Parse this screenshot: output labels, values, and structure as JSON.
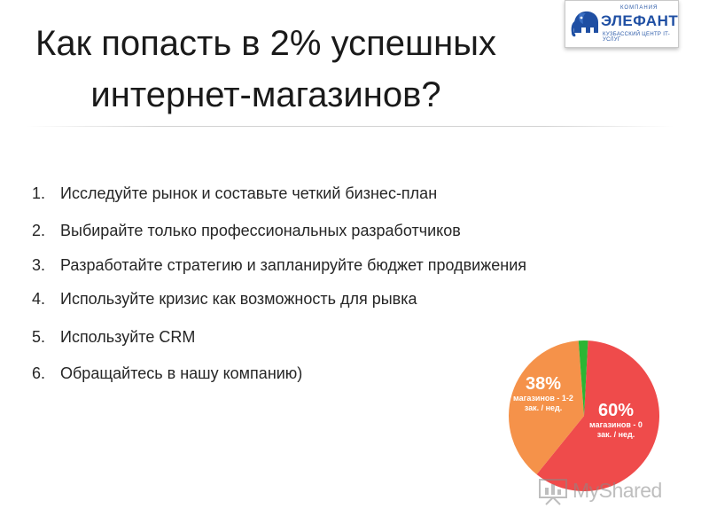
{
  "slide": {
    "title_line1": "Как попасть в 2% успешных",
    "title_line2": "интернет-магазинов?"
  },
  "logo": {
    "company_label": "КОМПАНИЯ",
    "name": "ЭЛЕФАНТ",
    "tagline": "КУЗБАССКИЙ ЦЕНТР IT-УСЛУГ",
    "color": "#1f4fa3"
  },
  "tips": [
    {
      "number": "1.",
      "text": "Исследуйте рынок и составьте четкий бизнес-план"
    },
    {
      "number": "2.",
      "text": "Выбирайте только профессиональных разработчиков"
    },
    {
      "number": "3.",
      "text": "Разработайте стратегию и запланируйте бюджет продвижения"
    },
    {
      "number": "4.",
      "text": "Используйте кризис как возможность для рывка"
    },
    {
      "number": "5.",
      "text": "Используйте CRM"
    },
    {
      "number": "6.",
      "text": "Обращайтесь в нашу компанию)"
    }
  ],
  "chart_data": {
    "type": "pie",
    "title": "",
    "slices": [
      {
        "label": "60%",
        "value": 60,
        "description": "магазинов - 0 зак. / нед.",
        "color": "#ef4b4b"
      },
      {
        "label": "38%",
        "value": 38,
        "description": "магазинов - 1-2 зак. / нед.",
        "color": "#f5924a"
      },
      {
        "label": "",
        "value": 2,
        "description": "",
        "color": "#2bb534"
      }
    ]
  },
  "watermark": {
    "text": "MyShared"
  }
}
